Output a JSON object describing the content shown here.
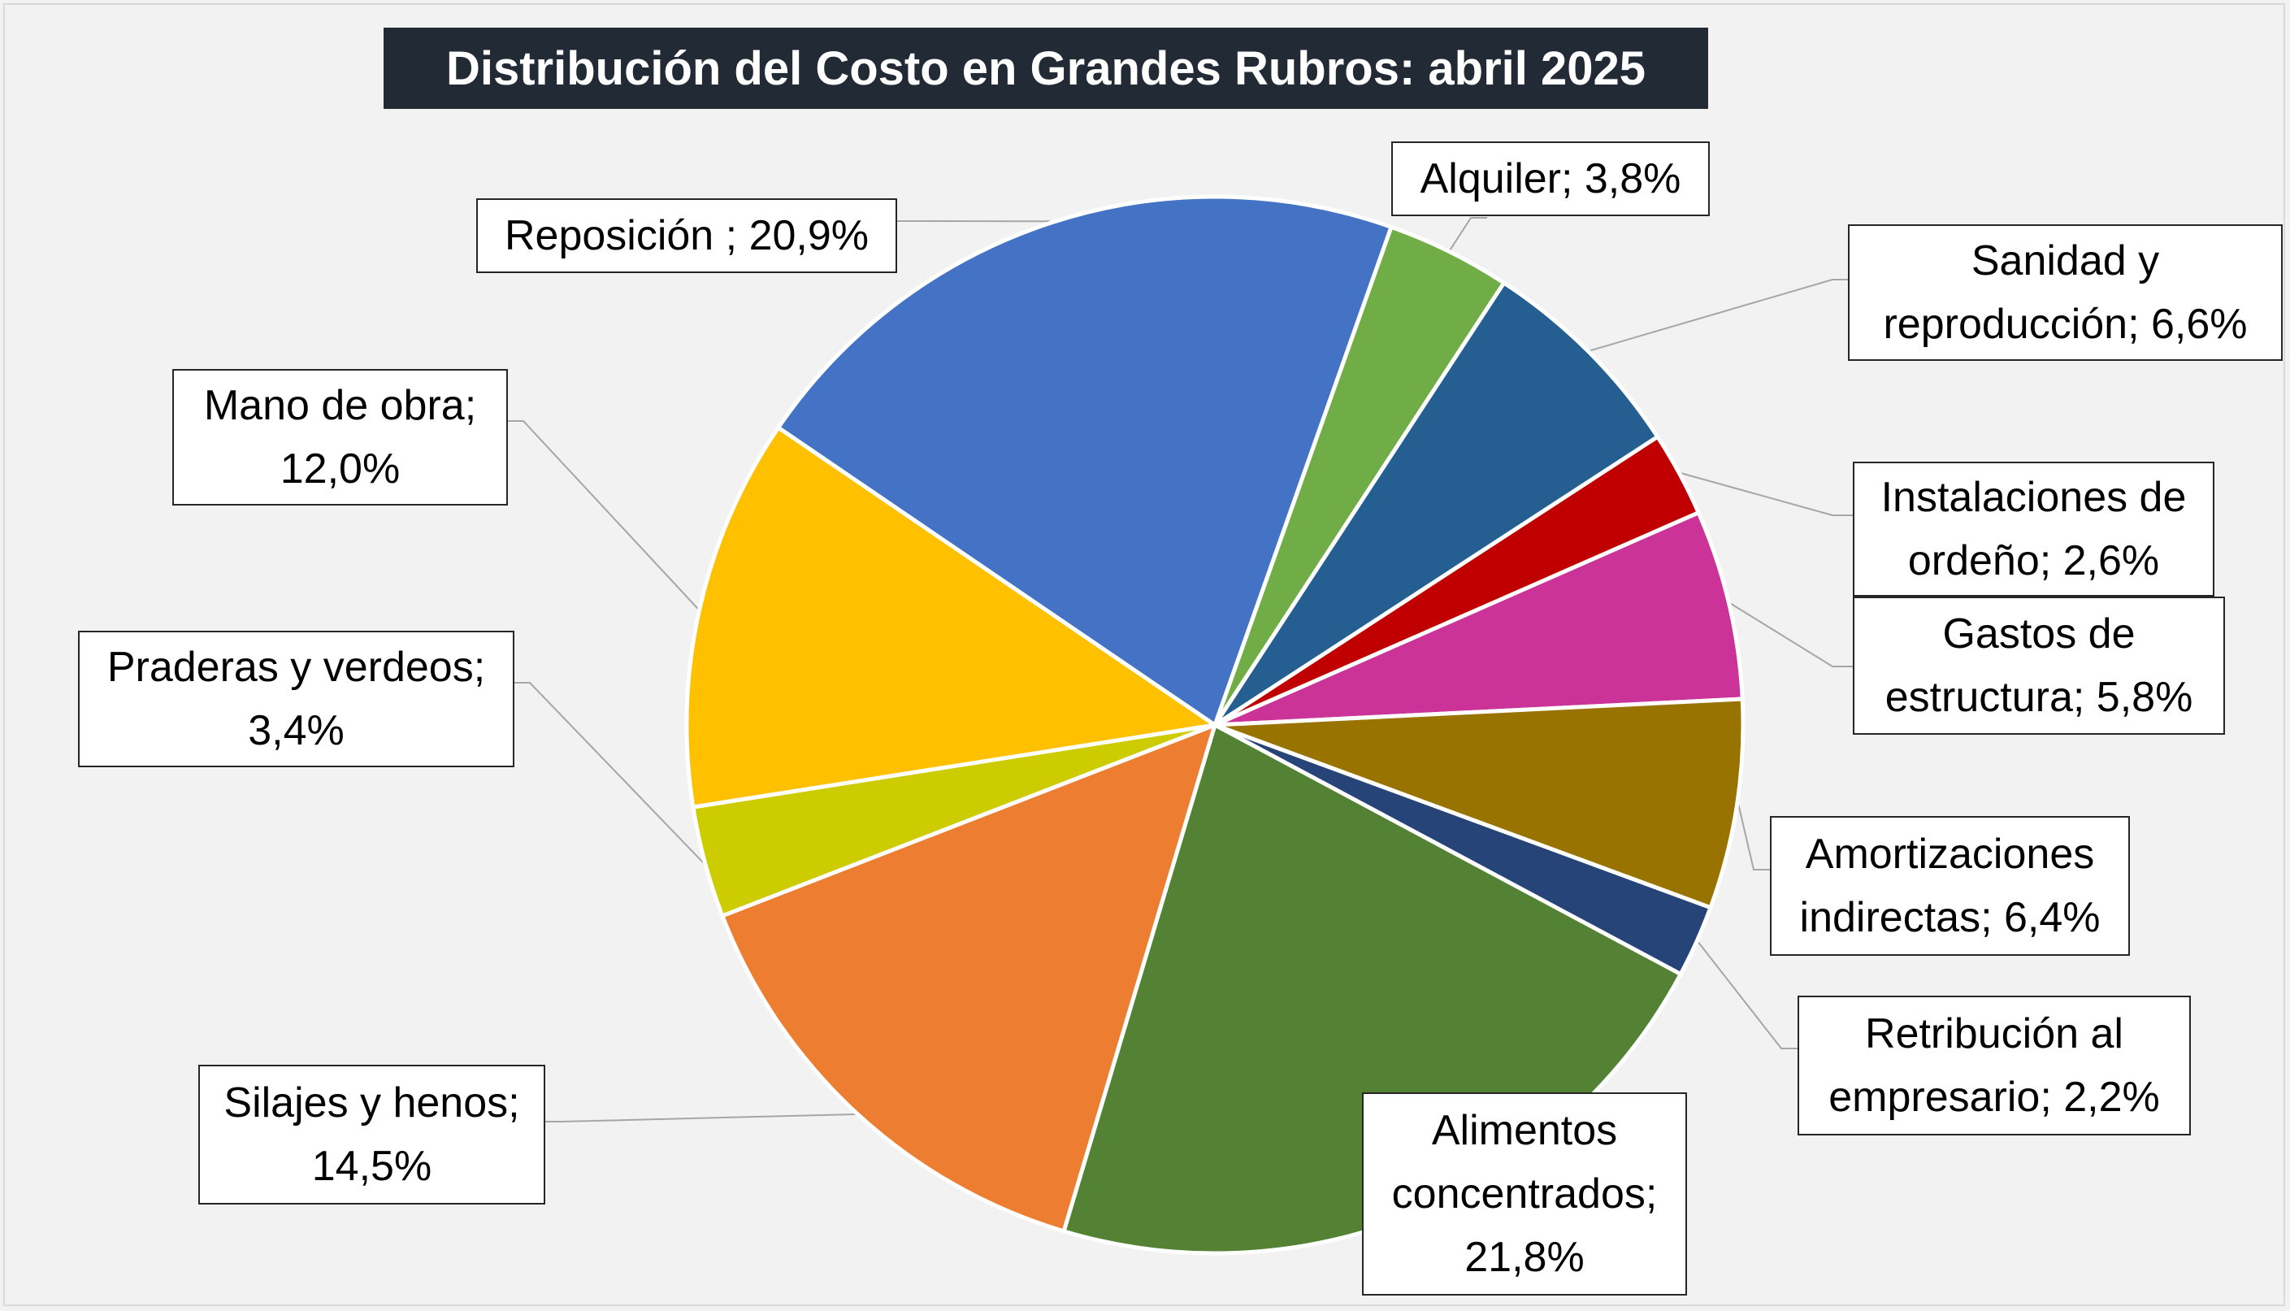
{
  "chart_data": {
    "type": "pie",
    "title": "Distribución del Costo en Grandes Rubros: abril 2025",
    "slices": [
      {
        "name": "Alquiler",
        "value": 3.8,
        "label": "Alquiler; 3,8%",
        "color": "#70ad47"
      },
      {
        "name": "Sanidad y reproducción",
        "value": 6.6,
        "label": "Sanidad y reproducción; 6,6%",
        "color": "#255e91"
      },
      {
        "name": "Instalaciones de ordeño",
        "value": 2.6,
        "label": "Instalaciones de ordeño; 2,6%",
        "color": "#c00000"
      },
      {
        "name": "Gastos de estructura",
        "value": 5.8,
        "label": "Gastos de estructura; 5,8%",
        "color": "#cc3399"
      },
      {
        "name": "Amortizaciones indirectas",
        "value": 6.4,
        "label": "Amortizaciones indirectas; 6,4%",
        "color": "#997300"
      },
      {
        "name": "Retribución al empresario",
        "value": 2.2,
        "label": "Retribución al empresario; 2,2%",
        "color": "#264478"
      },
      {
        "name": "Alimentos concentrados",
        "value": 21.8,
        "label": "Alimentos concentrados; 21,8%",
        "color": "#548235"
      },
      {
        "name": "Silajes y henos",
        "value": 14.5,
        "label": "Silajes y henos; 14,5%",
        "color": "#ed7d31"
      },
      {
        "name": "Praderas y verdeos",
        "value": 3.4,
        "label": "Praderas y verdeos; 3,4%",
        "color": "#cccc00"
      },
      {
        "name": "Mano de obra",
        "value": 12.0,
        "label": "Mano de obra; 12,0%",
        "color": "#ffc000"
      },
      {
        "name": "Reposición",
        "value": 20.9,
        "label": "Reposición ; 20,9%",
        "color": "#4472c4"
      }
    ],
    "labels": {
      "alquiler": [
        "Alquiler; 3,8%"
      ],
      "sanidad": [
        "Sanidad y",
        "reproducción; 6,6%"
      ],
      "instalaciones": [
        "Instalaciones de",
        "ordeño; 2,6%"
      ],
      "gastos": [
        "Gastos de",
        "estructura; 5,8%"
      ],
      "amortizaciones": [
        "Amortizaciones",
        "indirectas; 6,4%"
      ],
      "retribucion": [
        "Retribución al",
        "empresario; 2,2%"
      ],
      "alimentos": [
        "Alimentos",
        "concentrados;",
        "21,8%"
      ],
      "silajes": [
        "Silajes y henos;",
        "14,5%"
      ],
      "praderas": [
        "Praderas y verdeos;",
        "3,4%"
      ],
      "mano": [
        "Mano de obra;",
        "12,0%"
      ],
      "reposicion": [
        "Reposición ; 20,9%"
      ]
    },
    "legend": "none",
    "start_angle_deg": 19.5,
    "direction": "clockwise",
    "colors": {
      "background": "#f2f2f2",
      "title_background": "#222a35",
      "title_text": "#ffffff",
      "slice_border": "#ffffff",
      "leader_line": "#a6a6a6"
    }
  }
}
